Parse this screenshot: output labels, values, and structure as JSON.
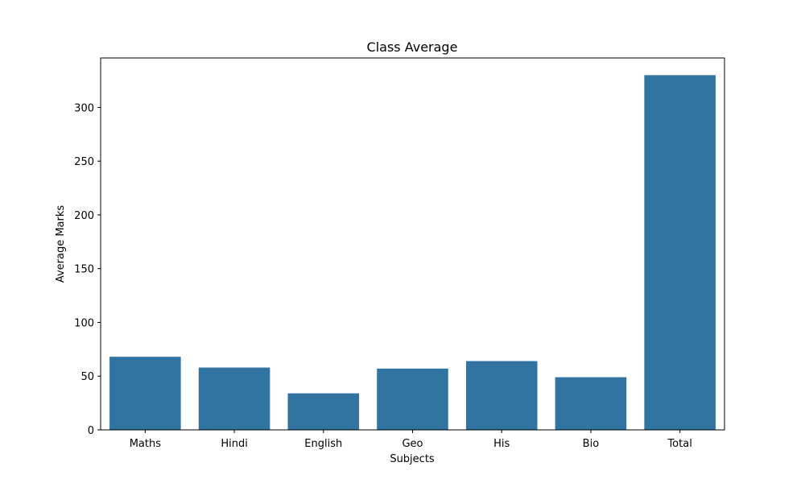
{
  "chart_data": {
    "type": "bar",
    "title": "Class Average",
    "xlabel": "Subjects",
    "ylabel": "Average Marks",
    "categories": [
      "Maths",
      "Hindi",
      "English",
      "Geo",
      "His",
      "Bio",
      "Total"
    ],
    "values": [
      68,
      58,
      34,
      57,
      64,
      49,
      330
    ],
    "ylim": [
      0,
      346
    ],
    "yticks": [
      0,
      50,
      100,
      150,
      200,
      250,
      300
    ],
    "grid": false,
    "bar_color": "#3274a1"
  }
}
